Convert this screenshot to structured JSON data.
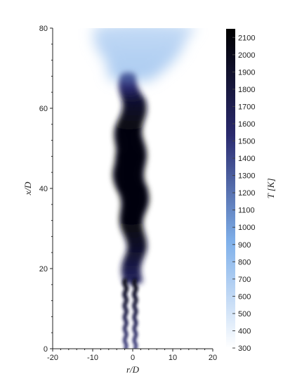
{
  "chart_data": {
    "type": "heatmap",
    "title": "",
    "xlabel": "r/D",
    "ylabel": "x/D",
    "xlim": [
      -20,
      20
    ],
    "ylim": [
      0,
      80
    ],
    "x_ticks": [
      -20,
      -10,
      0,
      10,
      20
    ],
    "x_tick_labels": [
      "-20",
      "-10",
      "0",
      "10",
      "20"
    ],
    "y_ticks": [
      0,
      20,
      40,
      60,
      80
    ],
    "y_tick_labels": [
      "0",
      "20",
      "40",
      "60",
      "80"
    ],
    "colorbar": {
      "label": "T [K]",
      "min": 300,
      "max": 2150,
      "ticks": [
        300,
        400,
        500,
        600,
        700,
        800,
        900,
        1000,
        1100,
        1200,
        1300,
        1400,
        1500,
        1600,
        1700,
        1800,
        1900,
        2000,
        2100
      ],
      "tick_labels": [
        "300",
        "400",
        "500",
        "600",
        "700",
        "800",
        "900",
        "1000",
        "1100",
        "1200",
        "1300",
        "1400",
        "1500",
        "1600",
        "1700",
        "1800",
        "1900",
        "2000",
        "2100"
      ],
      "colors": [
        "#ffffff",
        "#7fb0ea",
        "#2a2a6e",
        "#000000"
      ]
    },
    "flame_profile": {
      "description_units": "x/D vs r/D, temperature field of a turbulent jet flame",
      "jets": [
        {
          "r": -1.8,
          "x_start": 0,
          "x_end": 17,
          "half_width": 0.5
        },
        {
          "r": 0.6,
          "x_start": 0,
          "x_end": 17,
          "half_width": 0.5
        }
      ],
      "hot_core": [
        {
          "x": 17,
          "center": 0.0,
          "half_width": 2.5,
          "T": 1600
        },
        {
          "x": 25,
          "center": 0.5,
          "half_width": 2.5,
          "T": 1900
        },
        {
          "x": 32,
          "center": 0.2,
          "half_width": 3.0,
          "T": 2050
        },
        {
          "x": 40,
          "center": -0.2,
          "half_width": 4.0,
          "T": 2100
        },
        {
          "x": 48,
          "center": -1.0,
          "half_width": 4.0,
          "T": 2100
        },
        {
          "x": 55,
          "center": -0.5,
          "half_width": 3.5,
          "T": 2050
        },
        {
          "x": 62,
          "center": 0.0,
          "half_width": 3.0,
          "T": 1900
        },
        {
          "x": 68,
          "center": -1.0,
          "half_width": 2.0,
          "T": 1300
        }
      ],
      "plume": [
        {
          "x": 68,
          "center": 0.0,
          "half_width": 6.0,
          "T": 700
        },
        {
          "x": 75,
          "center": 2.0,
          "half_width": 11.0,
          "T": 650
        },
        {
          "x": 80,
          "center": 3.0,
          "half_width": 13.0,
          "T": 600
        }
      ]
    }
  }
}
